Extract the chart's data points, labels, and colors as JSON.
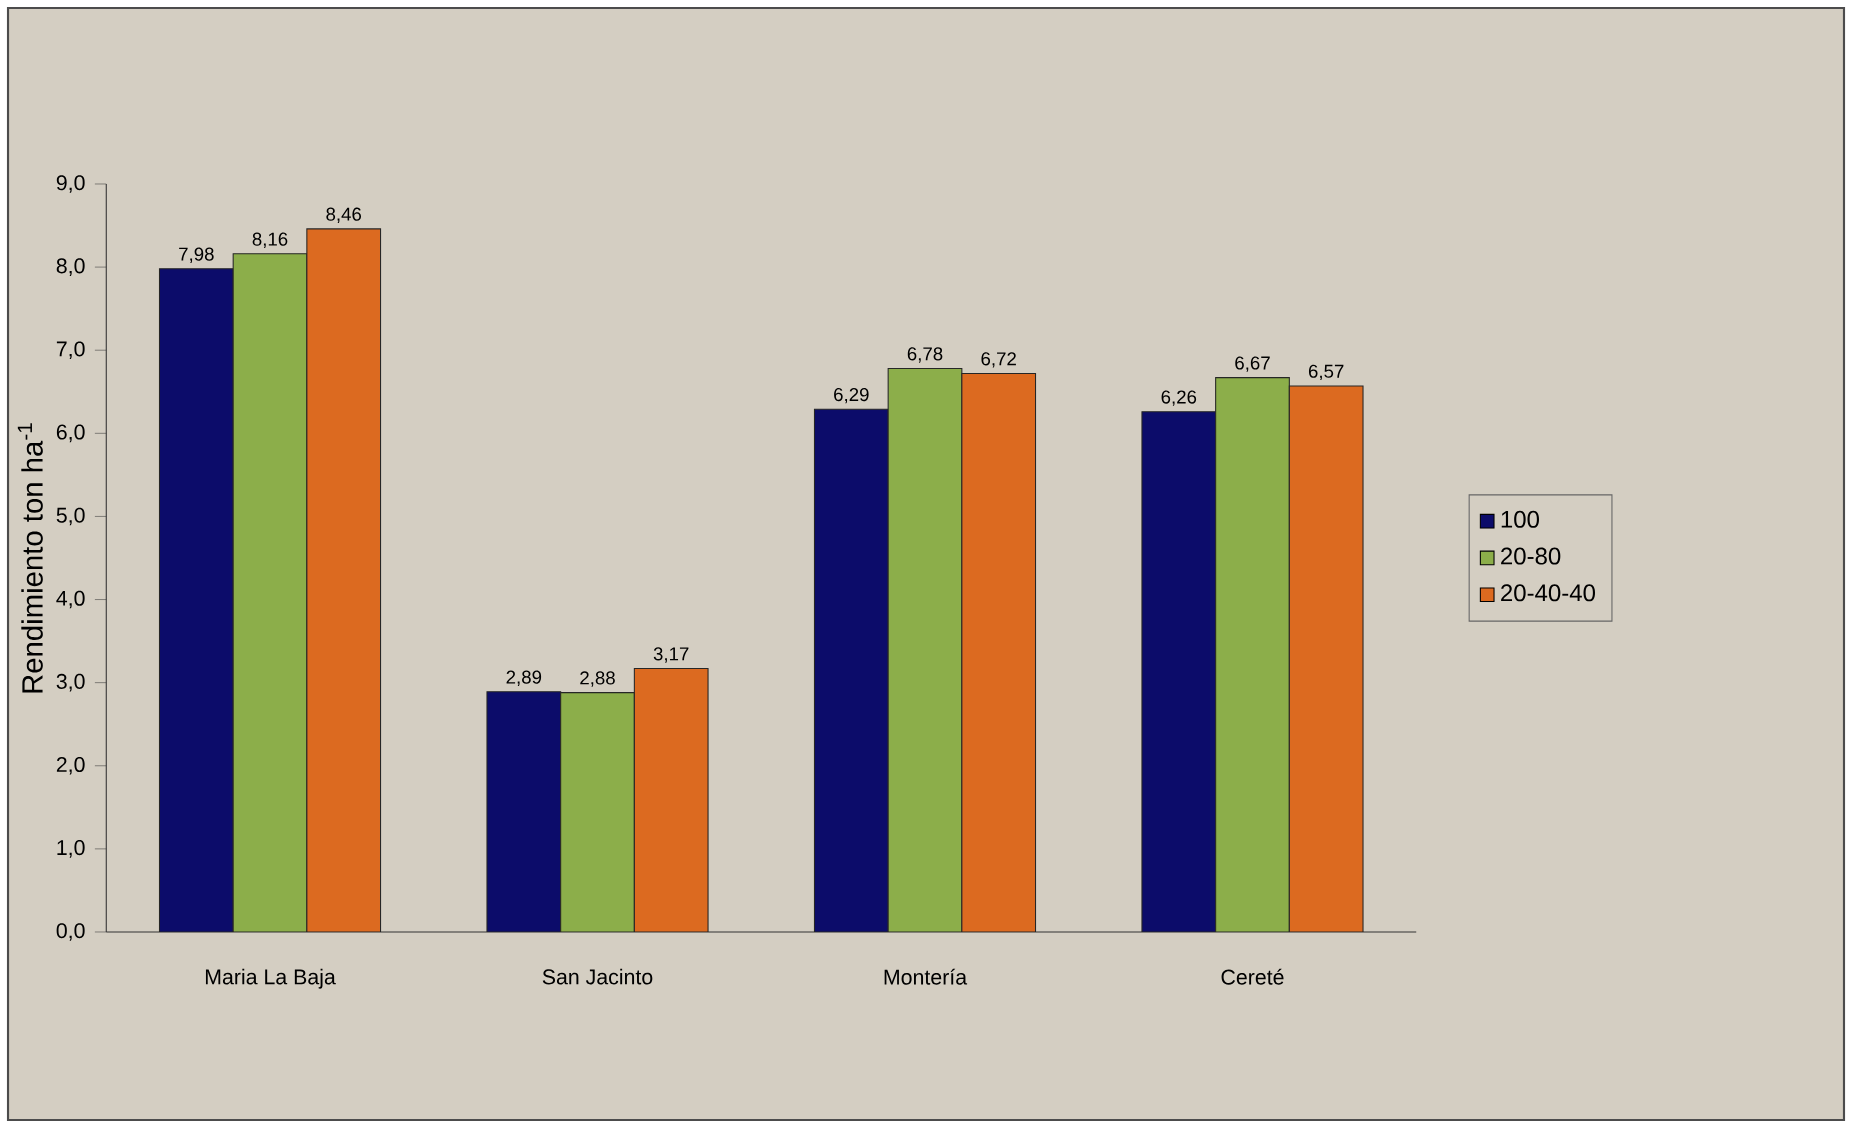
{
  "chart_data": {
    "type": "bar",
    "ylabel": "Rendimiento ton ha$^{-1}$",
    "categories": [
      "Maria La Baja",
      "San Jacinto",
      "Montería",
      "Cereté"
    ],
    "series": [
      {
        "name": "100",
        "color": "#0c0c6a",
        "values": [
          7.98,
          2.89,
          6.29,
          6.26
        ],
        "value_labels": [
          "7,98",
          "2,89",
          "6,29",
          "6,26"
        ]
      },
      {
        "name": "20-80",
        "color": "#8cae4a",
        "values": [
          8.16,
          2.88,
          6.78,
          6.67
        ],
        "value_labels": [
          "8,16",
          "2,88",
          "6,78",
          "6,67"
        ]
      },
      {
        "name": "20-40-40",
        "color": "#dc6a20",
        "values": [
          8.46,
          3.17,
          6.72,
          6.57
        ],
        "value_labels": [
          "8,46",
          "3,17",
          "6,72",
          "6,57"
        ]
      }
    ],
    "ylim": [
      0,
      9
    ],
    "yticks": [
      {
        "value": 0,
        "label": "0,0"
      },
      {
        "value": 1,
        "label": "1,0"
      },
      {
        "value": 2,
        "label": "2,0"
      },
      {
        "value": 3,
        "label": "3,0"
      },
      {
        "value": 4,
        "label": "4,0"
      },
      {
        "value": 5,
        "label": "5,0"
      },
      {
        "value": 6,
        "label": "6,0"
      },
      {
        "value": 7,
        "label": "7,0"
      },
      {
        "value": 8,
        "label": "8,0"
      },
      {
        "value": 9,
        "label": "9,0"
      }
    ],
    "legend": "right",
    "grid": false
  }
}
